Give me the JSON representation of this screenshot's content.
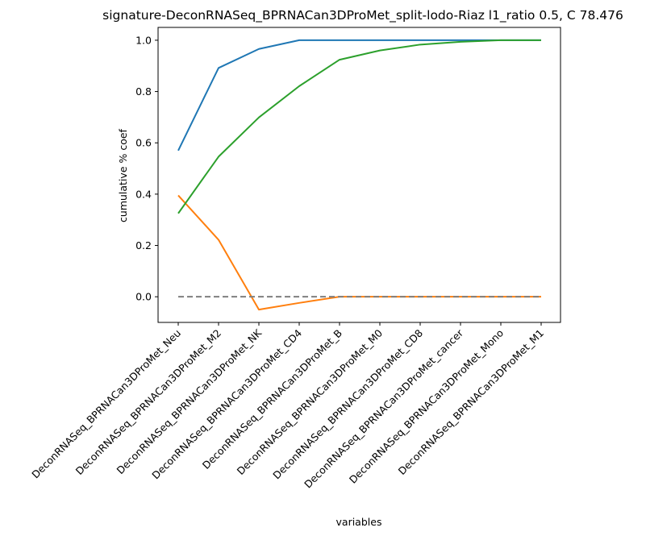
{
  "chart_data": {
    "type": "line",
    "title": "signature-DeconRNASeq_BPRNACan3DProMet_split-lodo-Riaz l1_ratio 0.5, C 78.476",
    "xlabel": "variables",
    "ylabel": "cumulative % coef",
    "categories": [
      "DeconRNASeq_BPRNACan3DProMet_Neu",
      "DeconRNASeq_BPRNACan3DProMet_M2",
      "DeconRNASeq_BPRNACan3DProMet_NK",
      "DeconRNASeq_BPRNACan3DProMet_CD4",
      "DeconRNASeq_BPRNACan3DProMet_B",
      "DeconRNASeq_BPRNACan3DProMet_M0",
      "DeconRNASeq_BPRNACan3DProMet_CD8",
      "DeconRNASeq_BPRNACan3DProMet_cancer",
      "DeconRNASeq_BPRNACan3DProMet_Mono",
      "DeconRNASeq_BPRNACan3DProMet_M1"
    ],
    "ylim": [
      -0.1,
      1.05
    ],
    "yticks": [
      0.0,
      0.2,
      0.4,
      0.6,
      0.8,
      1.0
    ],
    "ytick_labels": [
      "0.0",
      "0.2",
      "0.4",
      "0.6",
      "0.8",
      "1.0"
    ],
    "grid": false,
    "series": [
      {
        "color": "#1f77b4",
        "style": "solid",
        "values": [
          0.57,
          0.892,
          0.966,
          1.0,
          1.0,
          1.0,
          1.0,
          1.0,
          1.0,
          1.0
        ]
      },
      {
        "color": "#ff7f0e",
        "style": "solid",
        "values": [
          0.395,
          0.222,
          -0.05,
          -0.024,
          0.0,
          0.0,
          0.0,
          0.0,
          0.0,
          0.0
        ]
      },
      {
        "color": "#2ca02c",
        "style": "solid",
        "values": [
          0.325,
          0.546,
          0.699,
          0.821,
          0.924,
          0.96,
          0.983,
          0.994,
          1.0,
          1.0
        ]
      },
      {
        "color": "#7f7f7f",
        "style": "dashed",
        "values": [
          0.0,
          0.0,
          0.0,
          0.0,
          0.0,
          0.0,
          0.0,
          0.0,
          0.0,
          0.0
        ]
      }
    ]
  }
}
